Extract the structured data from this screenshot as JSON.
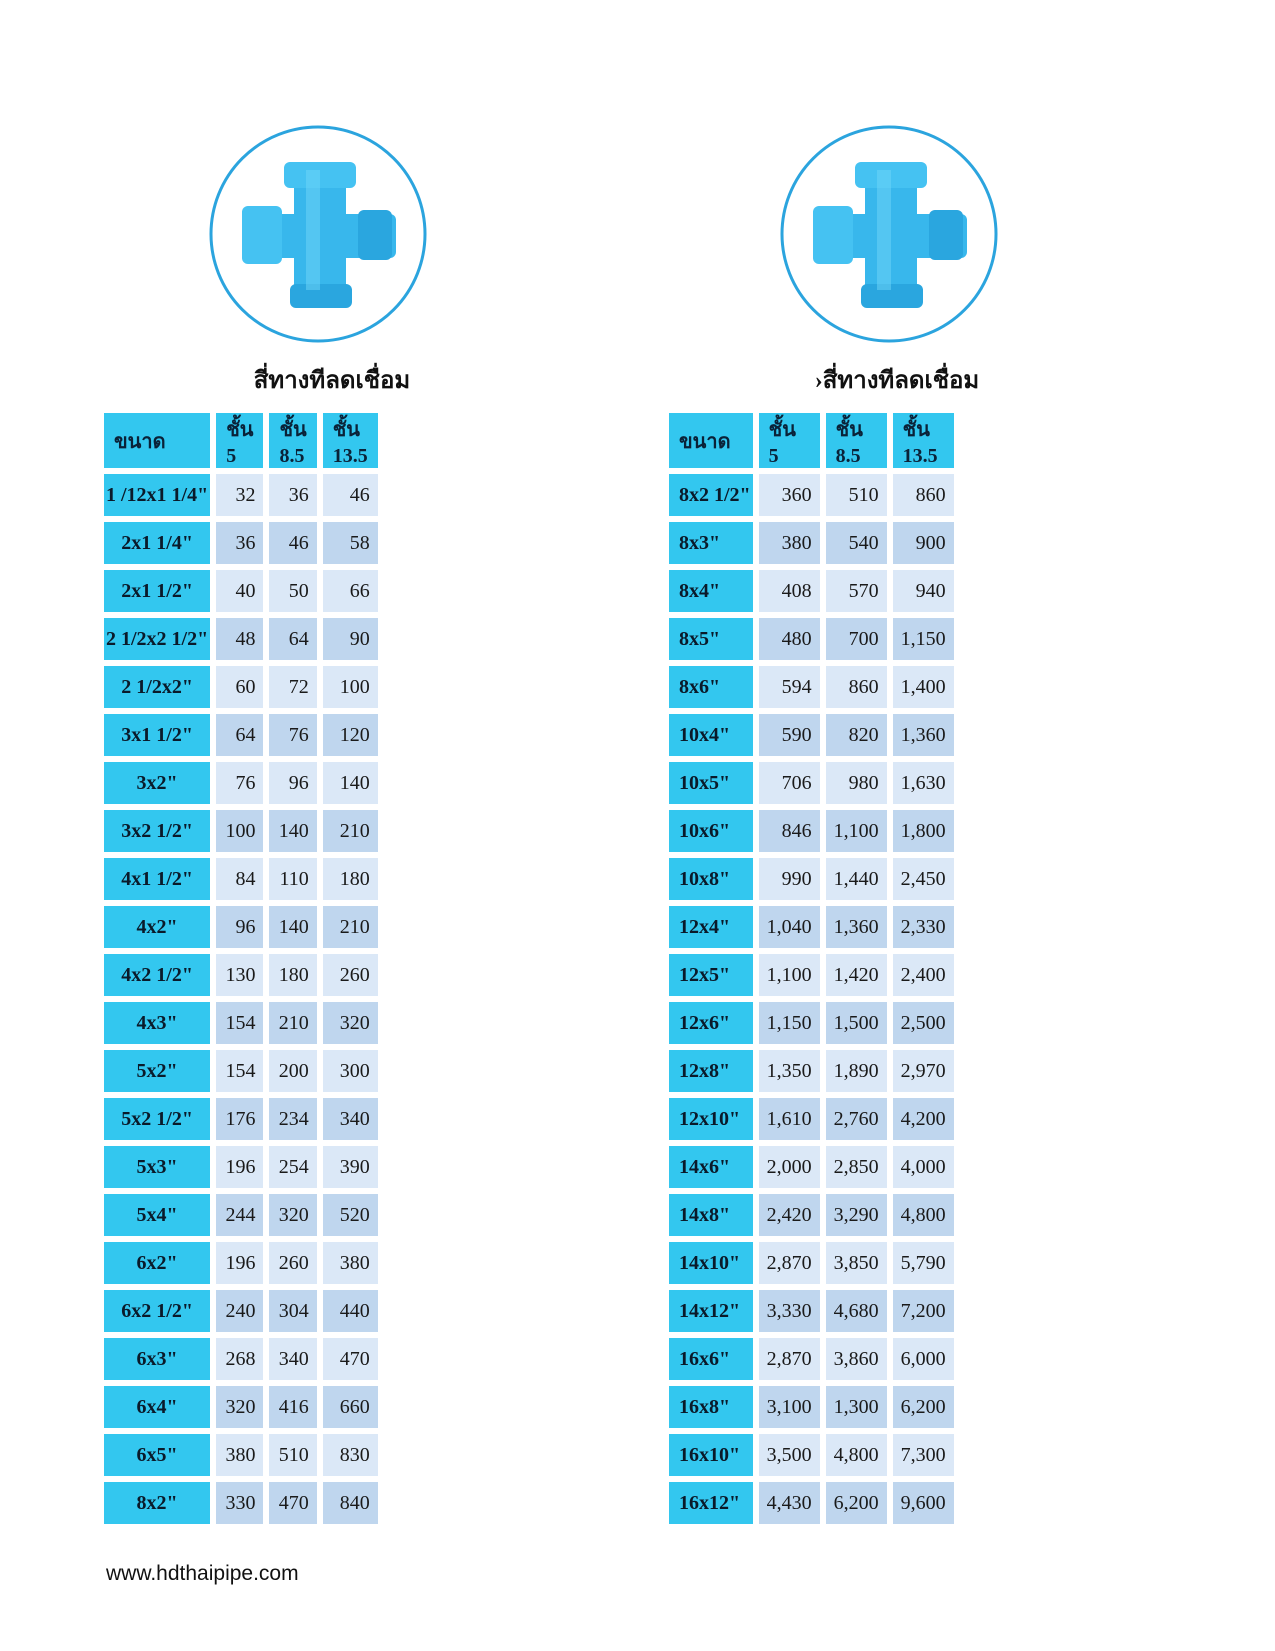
{
  "colors": {
    "header": "#33c7ef",
    "row_light": "#dbe8f7",
    "row_dark": "#bfd6ee",
    "circle": "#2ba4de"
  },
  "left": {
    "title": "สี่ทางทีลดเชื่อม",
    "headers": [
      "ขนาด",
      "ชั้น 5",
      "ชั้น 8.5",
      "ชั้น 13.5"
    ],
    "rows": [
      [
        "1 /12x1 1/4\"",
        "32",
        "36",
        "46"
      ],
      [
        "2x1 1/4\"",
        "36",
        "46",
        "58"
      ],
      [
        "2x1 1/2\"",
        "40",
        "50",
        "66"
      ],
      [
        "2 1/2x2 1/2\"",
        "48",
        "64",
        "90"
      ],
      [
        "2 1/2x2\"",
        "60",
        "72",
        "100"
      ],
      [
        "3x1 1/2\"",
        "64",
        "76",
        "120"
      ],
      [
        "3x2\"",
        "76",
        "96",
        "140"
      ],
      [
        "3x2 1/2\"",
        "100",
        "140",
        "210"
      ],
      [
        "4x1 1/2\"",
        "84",
        "110",
        "180"
      ],
      [
        "4x2\"",
        "96",
        "140",
        "210"
      ],
      [
        "4x2 1/2\"",
        "130",
        "180",
        "260"
      ],
      [
        "4x3\"",
        "154",
        "210",
        "320"
      ],
      [
        "5x2\"",
        "154",
        "200",
        "300"
      ],
      [
        "5x2 1/2\"",
        "176",
        "234",
        "340"
      ],
      [
        "5x3\"",
        "196",
        "254",
        "390"
      ],
      [
        "5x4\"",
        "244",
        "320",
        "520"
      ],
      [
        "6x2\"",
        "196",
        "260",
        "380"
      ],
      [
        "6x2 1/2\"",
        "240",
        "304",
        "440"
      ],
      [
        "6x3\"",
        "268",
        "340",
        "470"
      ],
      [
        "6x4\"",
        "320",
        "416",
        "660"
      ],
      [
        "6x5\"",
        "380",
        "510",
        "830"
      ],
      [
        "8x2\"",
        "330",
        "470",
        "840"
      ]
    ]
  },
  "right": {
    "title": "›สี่ทางทีลดเชื่อม",
    "headers": [
      "ขนาด",
      "ชั้น 5",
      "ชั้น 8.5",
      "ชั้น 13.5"
    ],
    "rows": [
      [
        "8x2 1/2\"",
        "360",
        "510",
        "860"
      ],
      [
        "8x3\"",
        "380",
        "540",
        "900"
      ],
      [
        "8x4\"",
        "408",
        "570",
        "940"
      ],
      [
        "8x5\"",
        "480",
        "700",
        "1,150"
      ],
      [
        "8x6\"",
        "594",
        "860",
        "1,400"
      ],
      [
        "10x4\"",
        "590",
        "820",
        "1,360"
      ],
      [
        "10x5\"",
        "706",
        "980",
        "1,630"
      ],
      [
        "10x6\"",
        "846",
        "1,100",
        "1,800"
      ],
      [
        "10x8\"",
        "990",
        "1,440",
        "2,450"
      ],
      [
        "12x4\"",
        "1,040",
        "1,360",
        "2,330"
      ],
      [
        "12x5\"",
        "1,100",
        "1,420",
        "2,400"
      ],
      [
        "12x6\"",
        "1,150",
        "1,500",
        "2,500"
      ],
      [
        "12x8\"",
        "1,350",
        "1,890",
        "2,970"
      ],
      [
        "12x10\"",
        "1,610",
        "2,760",
        "4,200"
      ],
      [
        "14x6\"",
        "2,000",
        "2,850",
        "4,000"
      ],
      [
        "14x8\"",
        "2,420",
        "3,290",
        "4,800"
      ],
      [
        "14x10\"",
        "2,870",
        "3,850",
        "5,790"
      ],
      [
        "14x12\"",
        "3,330",
        "4,680",
        "7,200"
      ],
      [
        "16x6\"",
        "2,870",
        "3,860",
        "6,000"
      ],
      [
        "16x8\"",
        "3,100",
        "1,300",
        "6,200"
      ],
      [
        "16x10\"",
        "3,500",
        "4,800",
        "7,300"
      ],
      [
        "16x12\"",
        "4,430",
        "6,200",
        "9,600"
      ]
    ]
  },
  "footer": "www.hdthaipipe.com"
}
